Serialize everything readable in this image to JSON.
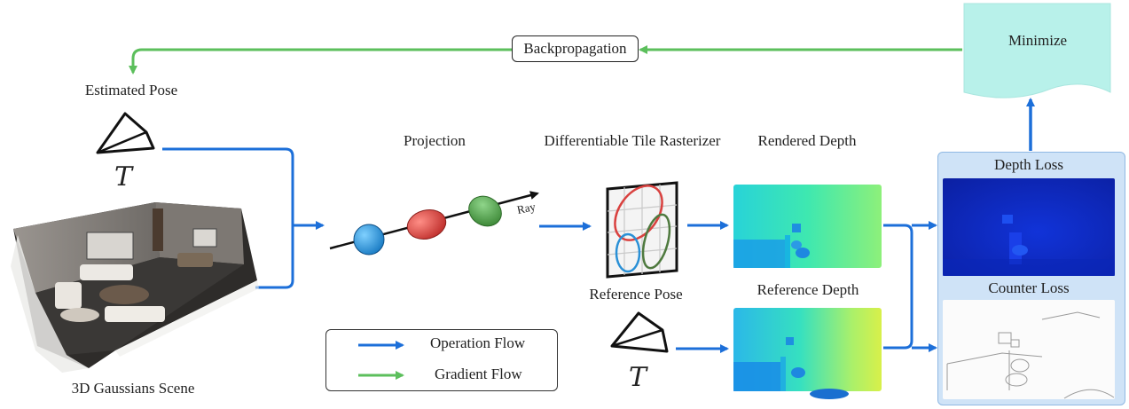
{
  "labels": {
    "estimated_pose": "Estimated  Pose",
    "pose_symbol": "T",
    "scene": "3D Gaussians Scene",
    "projection": "Projection",
    "ray": "Ray",
    "rasterizer": "Differentiable Tile Rasterizer",
    "reference_pose": "Reference  Pose",
    "rendered_depth": "Rendered Depth",
    "reference_depth": "Reference Depth",
    "depth_loss": "Depth Loss",
    "counter_loss": "Counter Loss",
    "minimize": "Minimize",
    "backpropagation": "Backpropagation"
  },
  "legend": {
    "operation_flow": "Operation Flow",
    "gradient_flow": "Gradient Flow"
  },
  "colors": {
    "operation_flow": "#1c6fd9",
    "gradient_flow": "#5cbf5c",
    "minimize_fill": "#b8f1ea",
    "loss_panel": "#cfe3f7",
    "gaussian_1": "#2a90d6",
    "gaussian_2": "#d9413f",
    "gaussian_3": "#4f9e46"
  },
  "icons": {
    "camera": "camera-frustum-icon",
    "scene": "room-render-image"
  }
}
